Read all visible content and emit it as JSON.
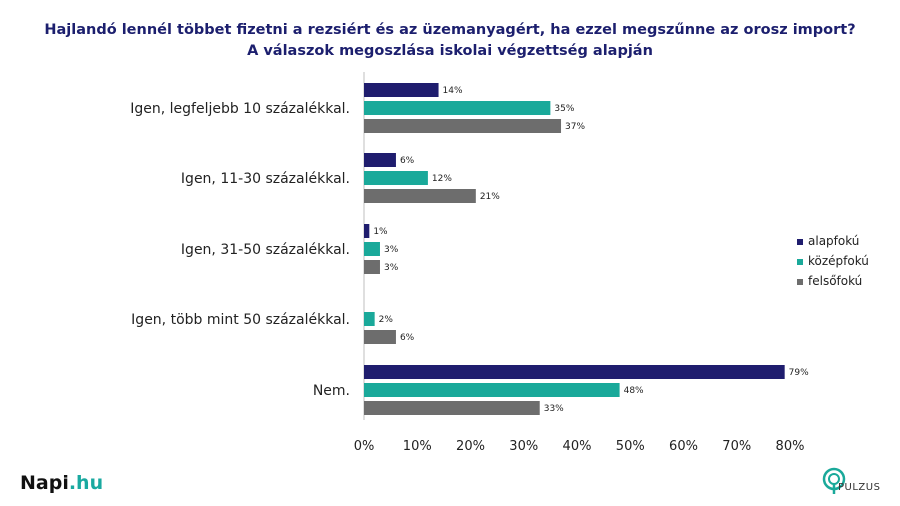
{
  "title": {
    "line1": "Hajlandó lennél többet fizetni a rezsiért és az üzemanyagért, ha ezzel megszűnne az orosz import?",
    "line2": "A válaszok megoszlása iskolai végzettség alapján"
  },
  "brand": {
    "name_main": "Napi",
    "name_suffix": ".hu",
    "partner": "PULZUS"
  },
  "chart_data": {
    "type": "bar",
    "orientation": "horizontal",
    "categories": [
      "Igen, legfeljebb 10 százalékkal.",
      "Igen, 11-30 százalékkal.",
      "Igen, 31-50 százalékkal.",
      "Igen, több mint 50 százalékkal.",
      "Nem."
    ],
    "series": [
      {
        "name": "alapfokú",
        "color": "#1f1d6e",
        "values": [
          14,
          6,
          1,
          null,
          79
        ]
      },
      {
        "name": "középfokú",
        "color": "#1aa99a",
        "values": [
          35,
          12,
          3,
          2,
          48
        ]
      },
      {
        "name": "felsőfokú",
        "color": "#6d6d6d",
        "values": [
          37,
          21,
          3,
          6,
          33
        ]
      }
    ],
    "value_labels": [
      [
        "14%",
        "6%",
        "1%",
        "",
        "79%"
      ],
      [
        "35%",
        "12%",
        "3%",
        "2%",
        "48%"
      ],
      [
        "37%",
        "21%",
        "3%",
        "6%",
        "33%"
      ]
    ],
    "xlim": [
      0,
      80
    ],
    "xticks": [
      "0%",
      "10%",
      "20%",
      "30%",
      "40%",
      "50%",
      "60%",
      "70%",
      "80%"
    ],
    "legend_position": "right",
    "grid": false
  }
}
